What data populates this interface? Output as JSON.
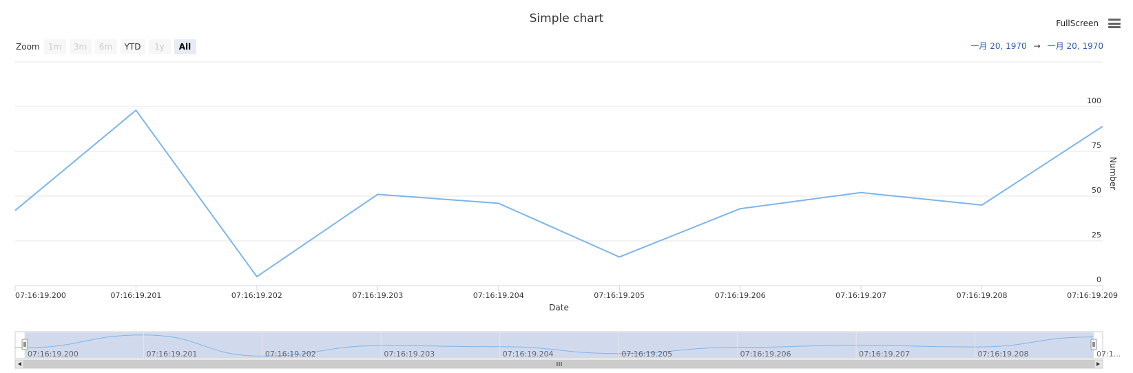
{
  "header": {
    "title": "Simple chart",
    "fullscreen_label": "FullScreen",
    "menu_icon": "hamburger-menu-icon"
  },
  "range_selector": {
    "zoom_label": "Zoom",
    "buttons": [
      {
        "label": "1m",
        "state": "disabled"
      },
      {
        "label": "3m",
        "state": "disabled"
      },
      {
        "label": "6m",
        "state": "disabled"
      },
      {
        "label": "YTD",
        "state": "enabled"
      },
      {
        "label": "1y",
        "state": "disabled"
      },
      {
        "label": "All",
        "state": "active"
      }
    ],
    "from": "一月 20, 1970",
    "arrow": "→",
    "to": "一月 20, 1970"
  },
  "chart_data": {
    "type": "line",
    "title": "Simple chart",
    "xlabel": "Date",
    "ylabel": "Number",
    "x": [
      "07:16:19.200",
      "07:16:19.201",
      "07:16:19.202",
      "07:16:19.203",
      "07:16:19.204",
      "07:16:19.205",
      "07:16:19.206",
      "07:16:19.207",
      "07:16:19.208",
      "07:16:19.209"
    ],
    "series": [
      {
        "values": [
          42,
          98,
          5,
          51,
          46,
          16,
          43,
          52,
          45,
          89
        ]
      }
    ],
    "x_ticks": [
      "07:16:19.200",
      "07:16:19.201",
      "07:16:19.202",
      "07:16:19.203",
      "07:16:19.204",
      "07:16:19.205",
      "07:16:19.206",
      "07:16:19.207",
      "07:16:19.208",
      "07:16:19.209"
    ],
    "y_ticks": [
      0,
      25,
      50,
      75,
      100
    ],
    "ylim": [
      0,
      125
    ],
    "grid": true,
    "y_axis_side": "right",
    "line_color": "#7cb5ec",
    "navigator": {
      "x_labels": [
        "07:16:19.200",
        "07:16:19.201",
        "07:16:19.202",
        "07:16:19.203",
        "07:16:19.204",
        "07:16:19.205",
        "07:16:19.206",
        "07:16:19.207",
        "07:16:19.208",
        "07:1..."
      ]
    }
  }
}
